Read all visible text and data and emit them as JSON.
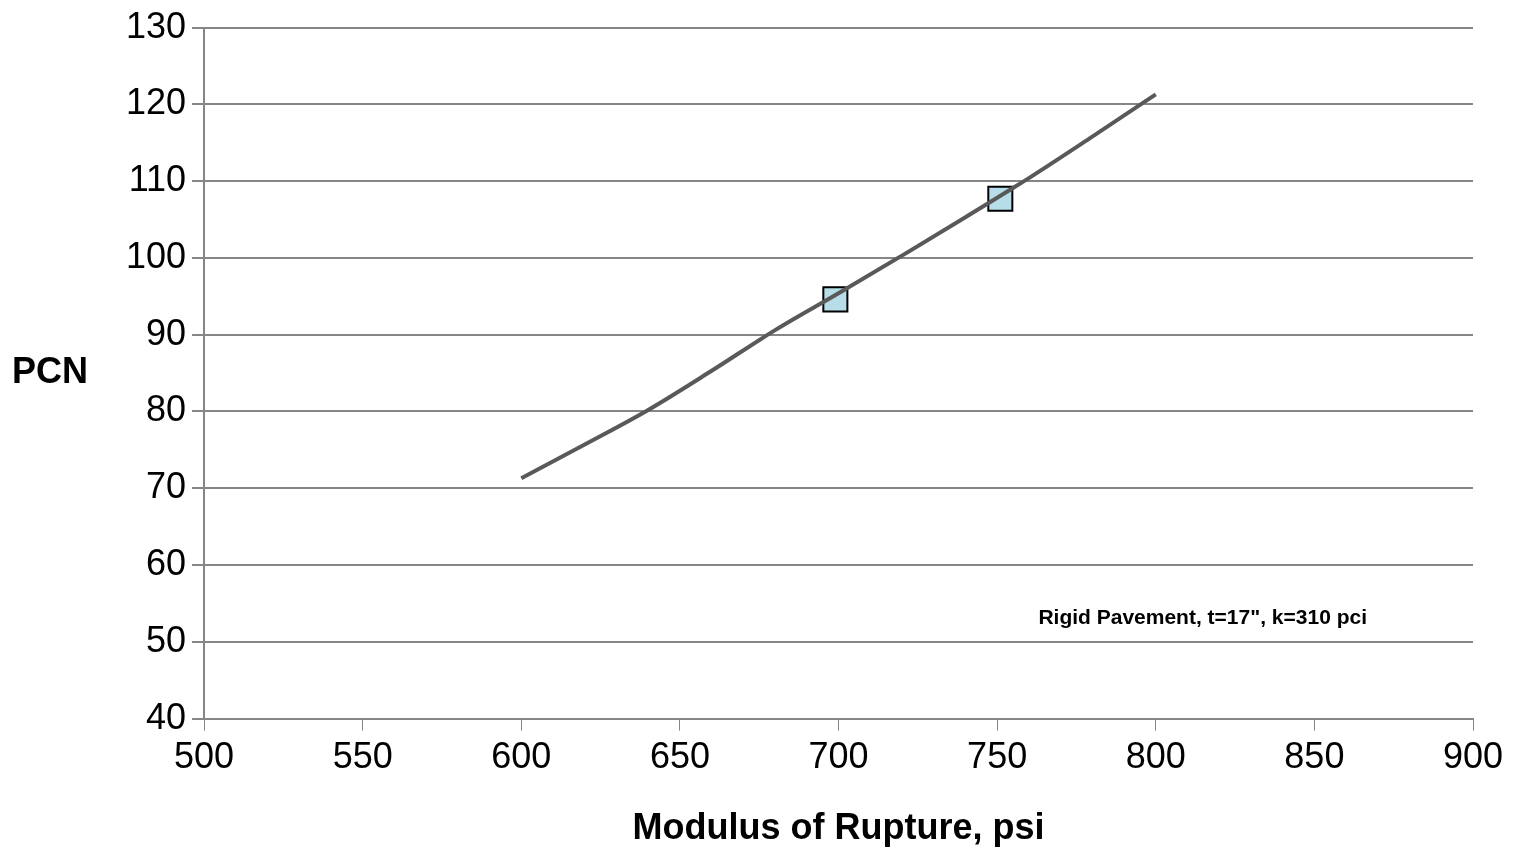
{
  "chart_data": {
    "type": "line",
    "xlabel": "Modulus of Rupture, psi",
    "ylabel": "PCN",
    "xlim": [
      500,
      900
    ],
    "xticks": [
      500,
      550,
      600,
      650,
      700,
      750,
      800,
      850,
      900
    ],
    "ylim": [
      40,
      130
    ],
    "yticks": [
      40,
      50,
      60,
      70,
      80,
      90,
      100,
      110,
      120,
      130
    ],
    "grid": "y",
    "legend": false,
    "series": [
      {
        "color": "#595959",
        "marker": "none",
        "line_style": "solid",
        "x": [
          600,
          620,
          640,
          660,
          680,
          700,
          720,
          740,
          760,
          780,
          800
        ],
        "values": [
          71.3,
          75.7,
          80.2,
          85.3,
          90.6,
          95.4,
          100.3,
          105.3,
          110.4,
          115.8,
          121.3
        ]
      },
      {
        "type": "scatter",
        "color": "#b7dee8",
        "marker": "square",
        "x": [
          699,
          751
        ],
        "values": [
          94.6,
          107.7
        ]
      }
    ],
    "annotations": [
      "Rigid Pavement, t=17\", k=310 pci"
    ]
  }
}
